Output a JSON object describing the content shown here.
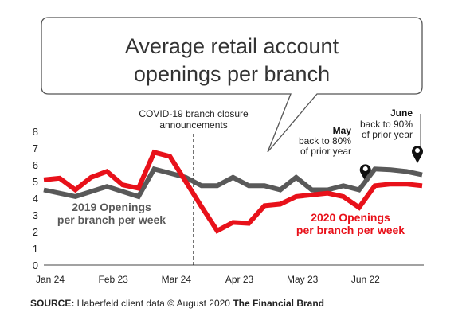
{
  "chart_data": {
    "type": "line",
    "title_lines": [
      "Average retail account",
      "openings per branch"
    ],
    "x_labels": [
      "Jan 24",
      "Feb 23",
      "Mar 24",
      "Apr 23",
      "May 23",
      "Jun 22"
    ],
    "y_ticks": [
      0,
      1,
      2,
      3,
      4,
      5,
      6,
      7,
      8
    ],
    "ylim": [
      0,
      8
    ],
    "grid": false,
    "series": [
      {
        "name": "2019 Openings per branch per week",
        "label_lines": [
          "2019 Openings",
          "per branch per week"
        ],
        "color": "#595959",
        "values": [
          4.5,
          4.3,
          4.1,
          4.4,
          4.7,
          4.4,
          4.1,
          5.75,
          5.5,
          5.25,
          4.75,
          4.75,
          5.25,
          4.75,
          4.75,
          4.5,
          5.25,
          4.5,
          4.5,
          4.75,
          4.5,
          5.75,
          5.7,
          5.6,
          5.4
        ]
      },
      {
        "name": "2020 Openings per branch per week",
        "label_lines": [
          "2020 Openings",
          "per branch per week"
        ],
        "color": "#e8111a",
        "values": [
          5.1,
          5.2,
          4.5,
          5.25,
          5.6,
          4.8,
          4.6,
          6.75,
          6.5,
          5.0,
          3.5,
          2.05,
          2.55,
          2.5,
          3.55,
          3.65,
          4.1,
          4.2,
          4.3,
          4.1,
          3.45,
          4.75,
          4.85,
          4.85,
          4.75
        ]
      }
    ],
    "annotations": {
      "covid": {
        "lines": [
          "COVID-19 branch closure",
          "announcements"
        ],
        "x_index": 9.5
      },
      "may": {
        "title": "May",
        "lines": [
          "back to 80%",
          "of prior year"
        ],
        "x_index": 20.5
      },
      "june": {
        "title": "June",
        "lines": [
          "back to 90%",
          "of prior year"
        ],
        "x_index": 24
      }
    }
  },
  "footer": {
    "source_label": "SOURCE:",
    "source_text": " Haberfeld client data © August 2020 ",
    "brand": "The Financial Brand"
  }
}
